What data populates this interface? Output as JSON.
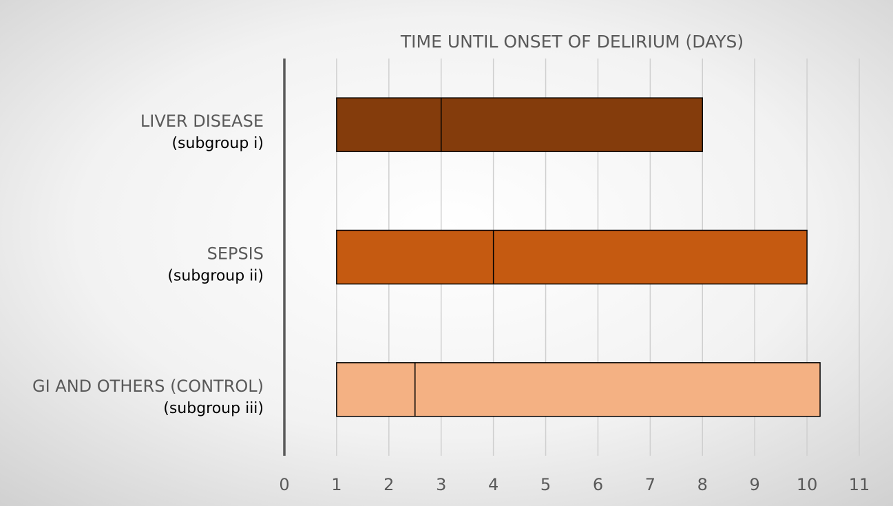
{
  "chart_data": {
    "type": "range_bar",
    "title": "TIME UNTIL ONSET OF DELIRIUM (DAYS)",
    "categories": [
      "LIVER DISEASE",
      "SEPSIS",
      "GI AND OTHERS (CONTROL)"
    ],
    "subtitles": [
      "(subgroup i)",
      "(subgroup ii)",
      "(subgroup iii)"
    ],
    "low": [
      1,
      1,
      1
    ],
    "median": [
      3,
      4,
      2.5
    ],
    "high": [
      8,
      10,
      10.25
    ],
    "colors": [
      "#843c0c",
      "#c55a11",
      "#f4b183"
    ],
    "xlim": [
      0,
      11
    ],
    "xticks": [
      0,
      1,
      2,
      3,
      4,
      5,
      6,
      7,
      8,
      9,
      10,
      11
    ],
    "grid": true
  }
}
